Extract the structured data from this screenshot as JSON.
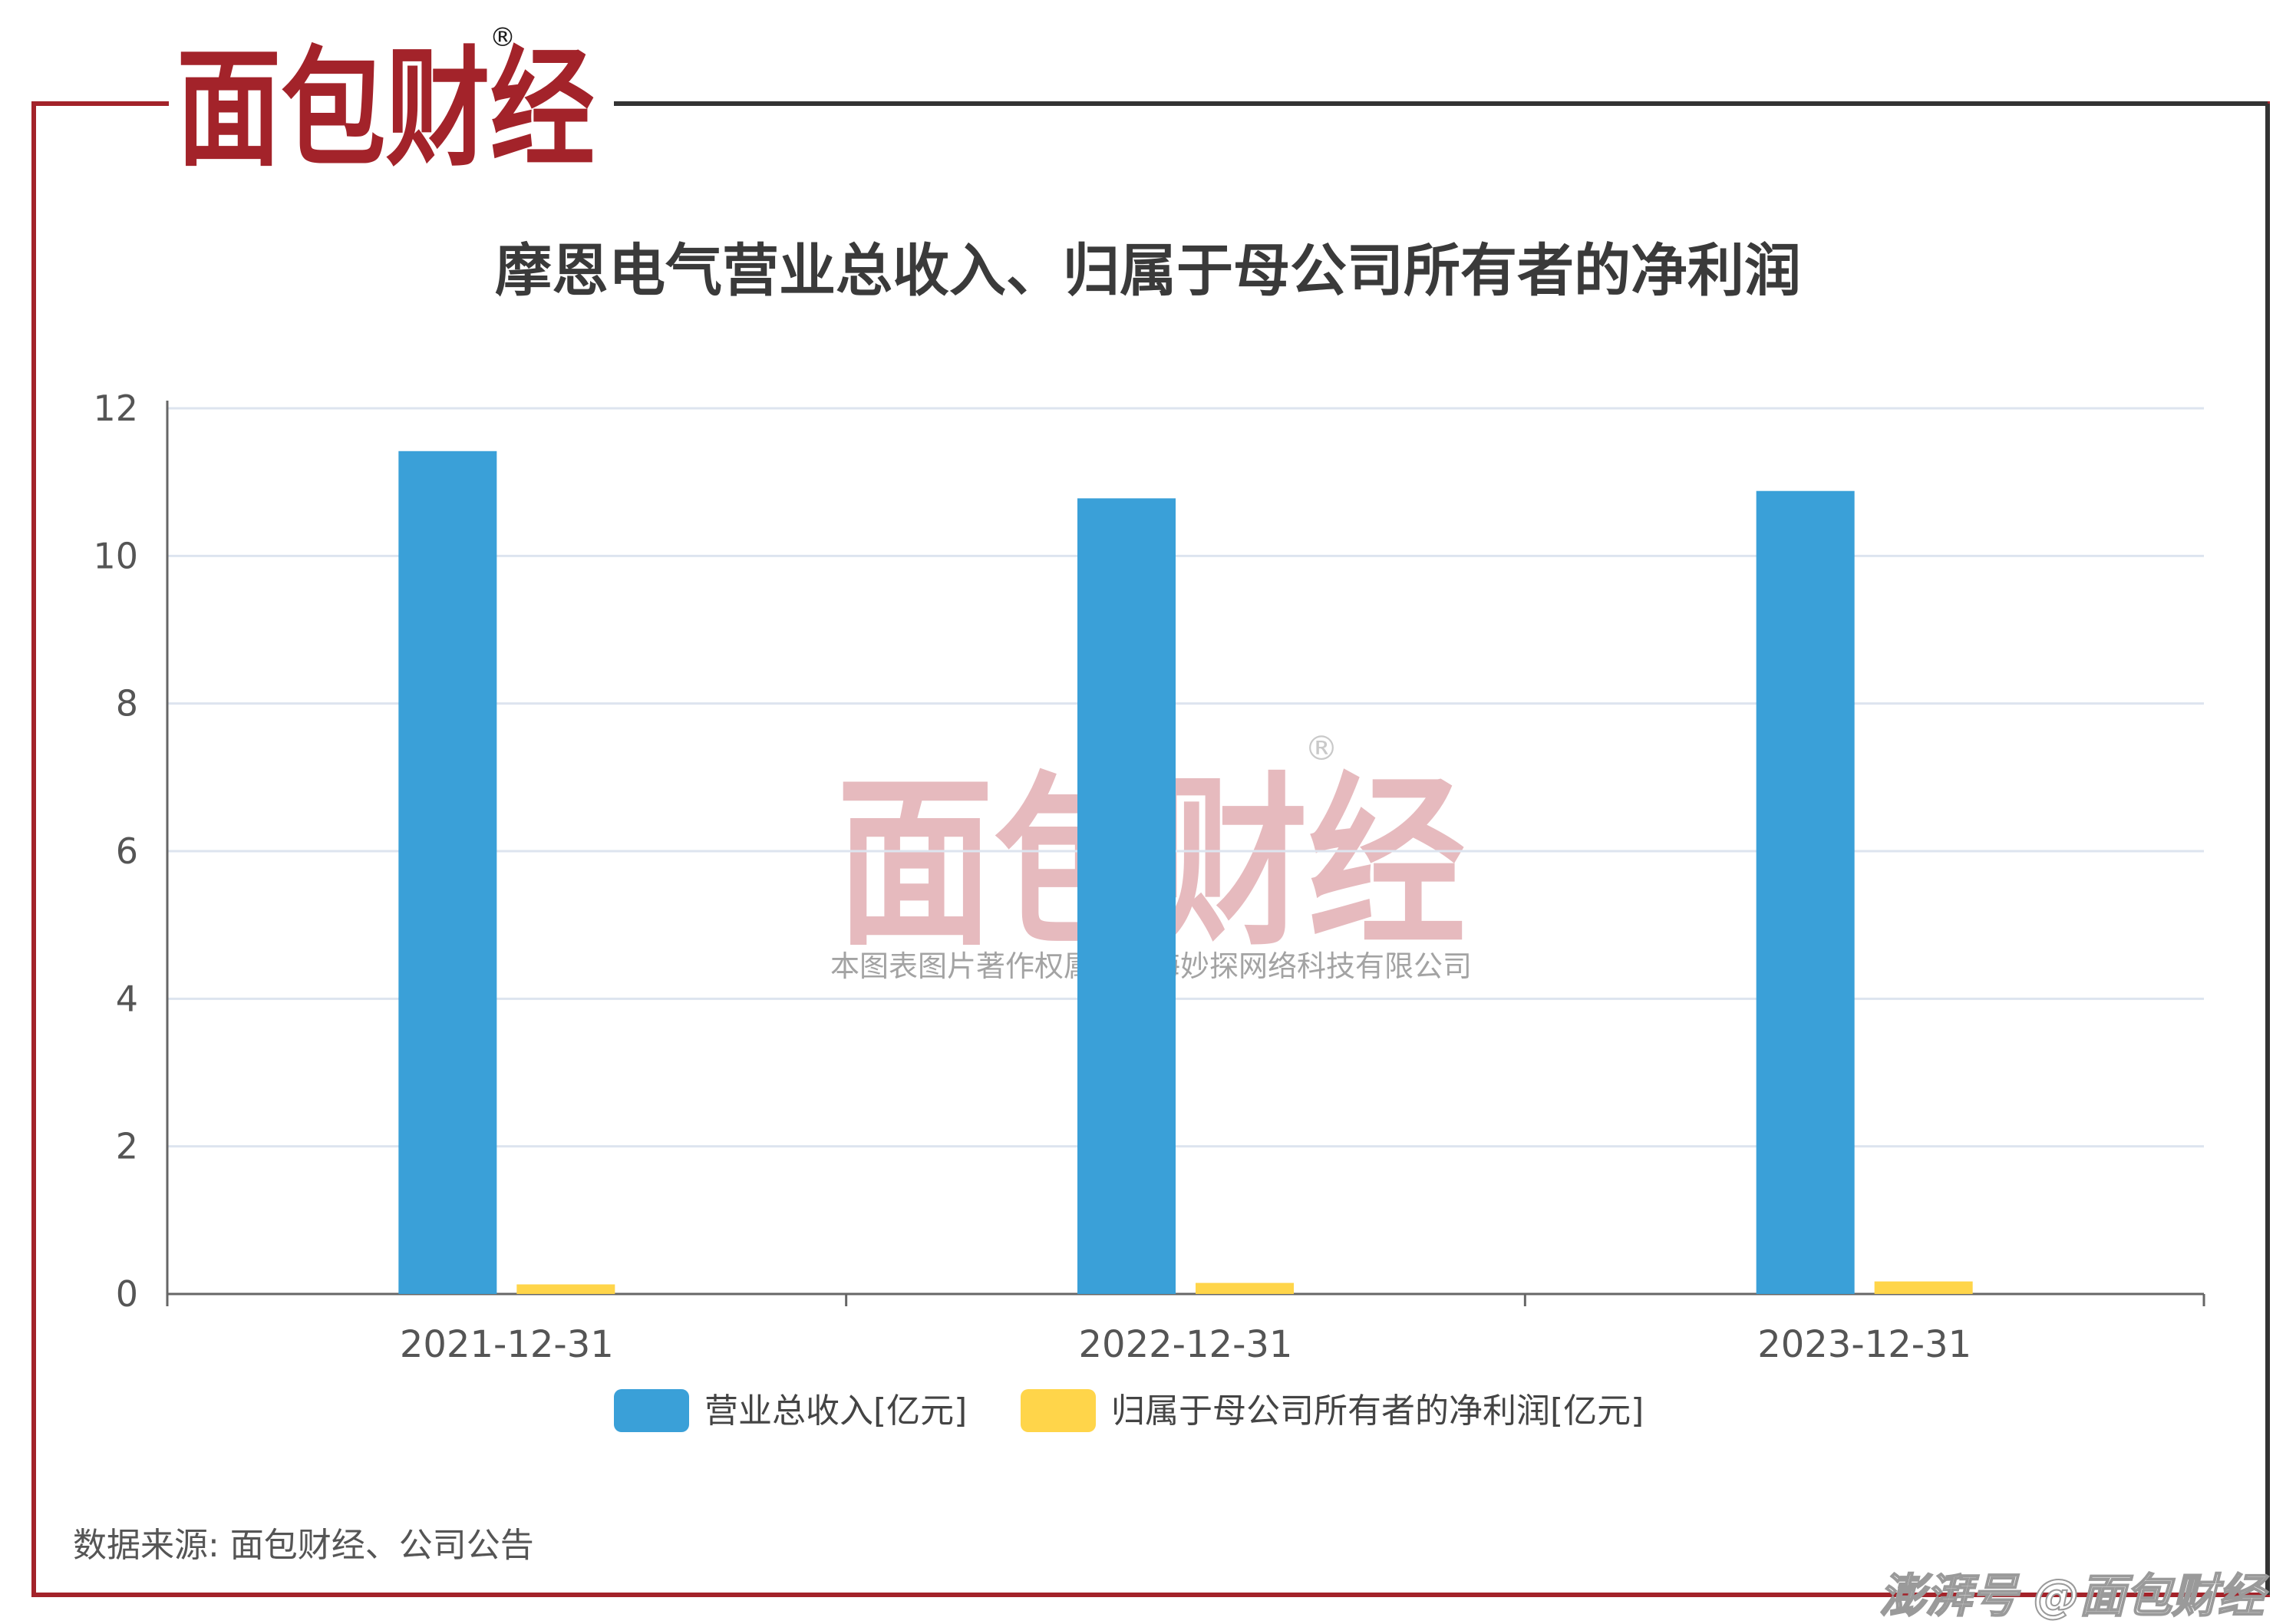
{
  "brand": {
    "logo_text": "面包财经",
    "registered_mark": "®",
    "colors": {
      "red": "#a3232a",
      "dark": "#1a1a1a"
    }
  },
  "watermark": {
    "logo_text": "面包财经",
    "registered_mark": "®",
    "copyright": "本图表图片著作权属于上海妙探网络科技有限公司"
  },
  "source_note": "数据来源: 面包财经、公司公告",
  "footer_tag": "澎湃号 @面包财经",
  "chart_data": {
    "type": "bar",
    "title": "摩恩电气营业总收入、归属于母公司所有者的净利润",
    "categories": [
      "2021-12-31",
      "2022-12-31",
      "2023-12-31"
    ],
    "series": [
      {
        "name": "营业总收入[亿元]",
        "color": "#3aa0d8",
        "values": [
          11.42,
          10.78,
          10.88
        ]
      },
      {
        "name": "归属于母公司所有者的净利润[亿元]",
        "color": "#ffd54a",
        "values": [
          0.13,
          0.15,
          0.17
        ]
      }
    ],
    "ylim": [
      0,
      12
    ],
    "yticks": [
      "0",
      "2",
      "4",
      "6",
      "8",
      "10",
      "12"
    ],
    "grid": true,
    "legend_position": "bottom"
  }
}
